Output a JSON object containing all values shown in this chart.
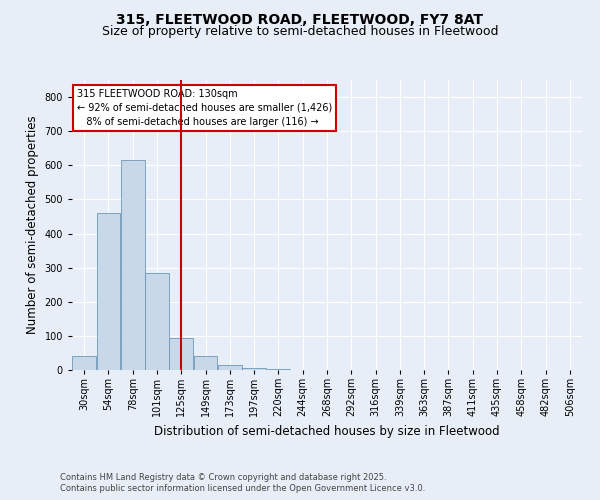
{
  "title1": "315, FLEETWOOD ROAD, FLEETWOOD, FY7 8AT",
  "title2": "Size of property relative to semi-detached houses in Fleetwood",
  "xlabel": "Distribution of semi-detached houses by size in Fleetwood",
  "ylabel": "Number of semi-detached properties",
  "footnote1": "Contains HM Land Registry data © Crown copyright and database right 2025.",
  "footnote2": "Contains public sector information licensed under the Open Government Licence v3.0.",
  "bin_labels": [
    "30sqm",
    "54sqm",
    "78sqm",
    "101sqm",
    "125sqm",
    "149sqm",
    "173sqm",
    "197sqm",
    "220sqm",
    "244sqm",
    "268sqm",
    "292sqm",
    "316sqm",
    "339sqm",
    "363sqm",
    "387sqm",
    "411sqm",
    "435sqm",
    "458sqm",
    "482sqm",
    "506sqm"
  ],
  "bar_heights": [
    40,
    460,
    615,
    285,
    95,
    40,
    15,
    5,
    2,
    1,
    0,
    0,
    0,
    0,
    0,
    0,
    0,
    0,
    0,
    0,
    0
  ],
  "bar_color": "#c8d8e8",
  "bar_edge_color": "#5a8ab0",
  "property_bin_index": 4,
  "property_line_color": "#cc0000",
  "annotation_line1": "315 FLEETWOOD ROAD: 130sqm",
  "annotation_line2": "← 92% of semi-detached houses are smaller (1,426)",
  "annotation_line3": "   8% of semi-detached houses are larger (116) →",
  "annotation_box_color": "#cc0000",
  "ylim": [
    0,
    850
  ],
  "yticks": [
    0,
    100,
    200,
    300,
    400,
    500,
    600,
    700,
    800
  ],
  "bg_color": "#e8eef8",
  "plot_bg_color": "#e8eef8",
  "grid_color": "#ffffff",
  "title_fontsize": 10,
  "subtitle_fontsize": 9,
  "axis_label_fontsize": 8.5,
  "tick_fontsize": 7,
  "footnote_fontsize": 6
}
